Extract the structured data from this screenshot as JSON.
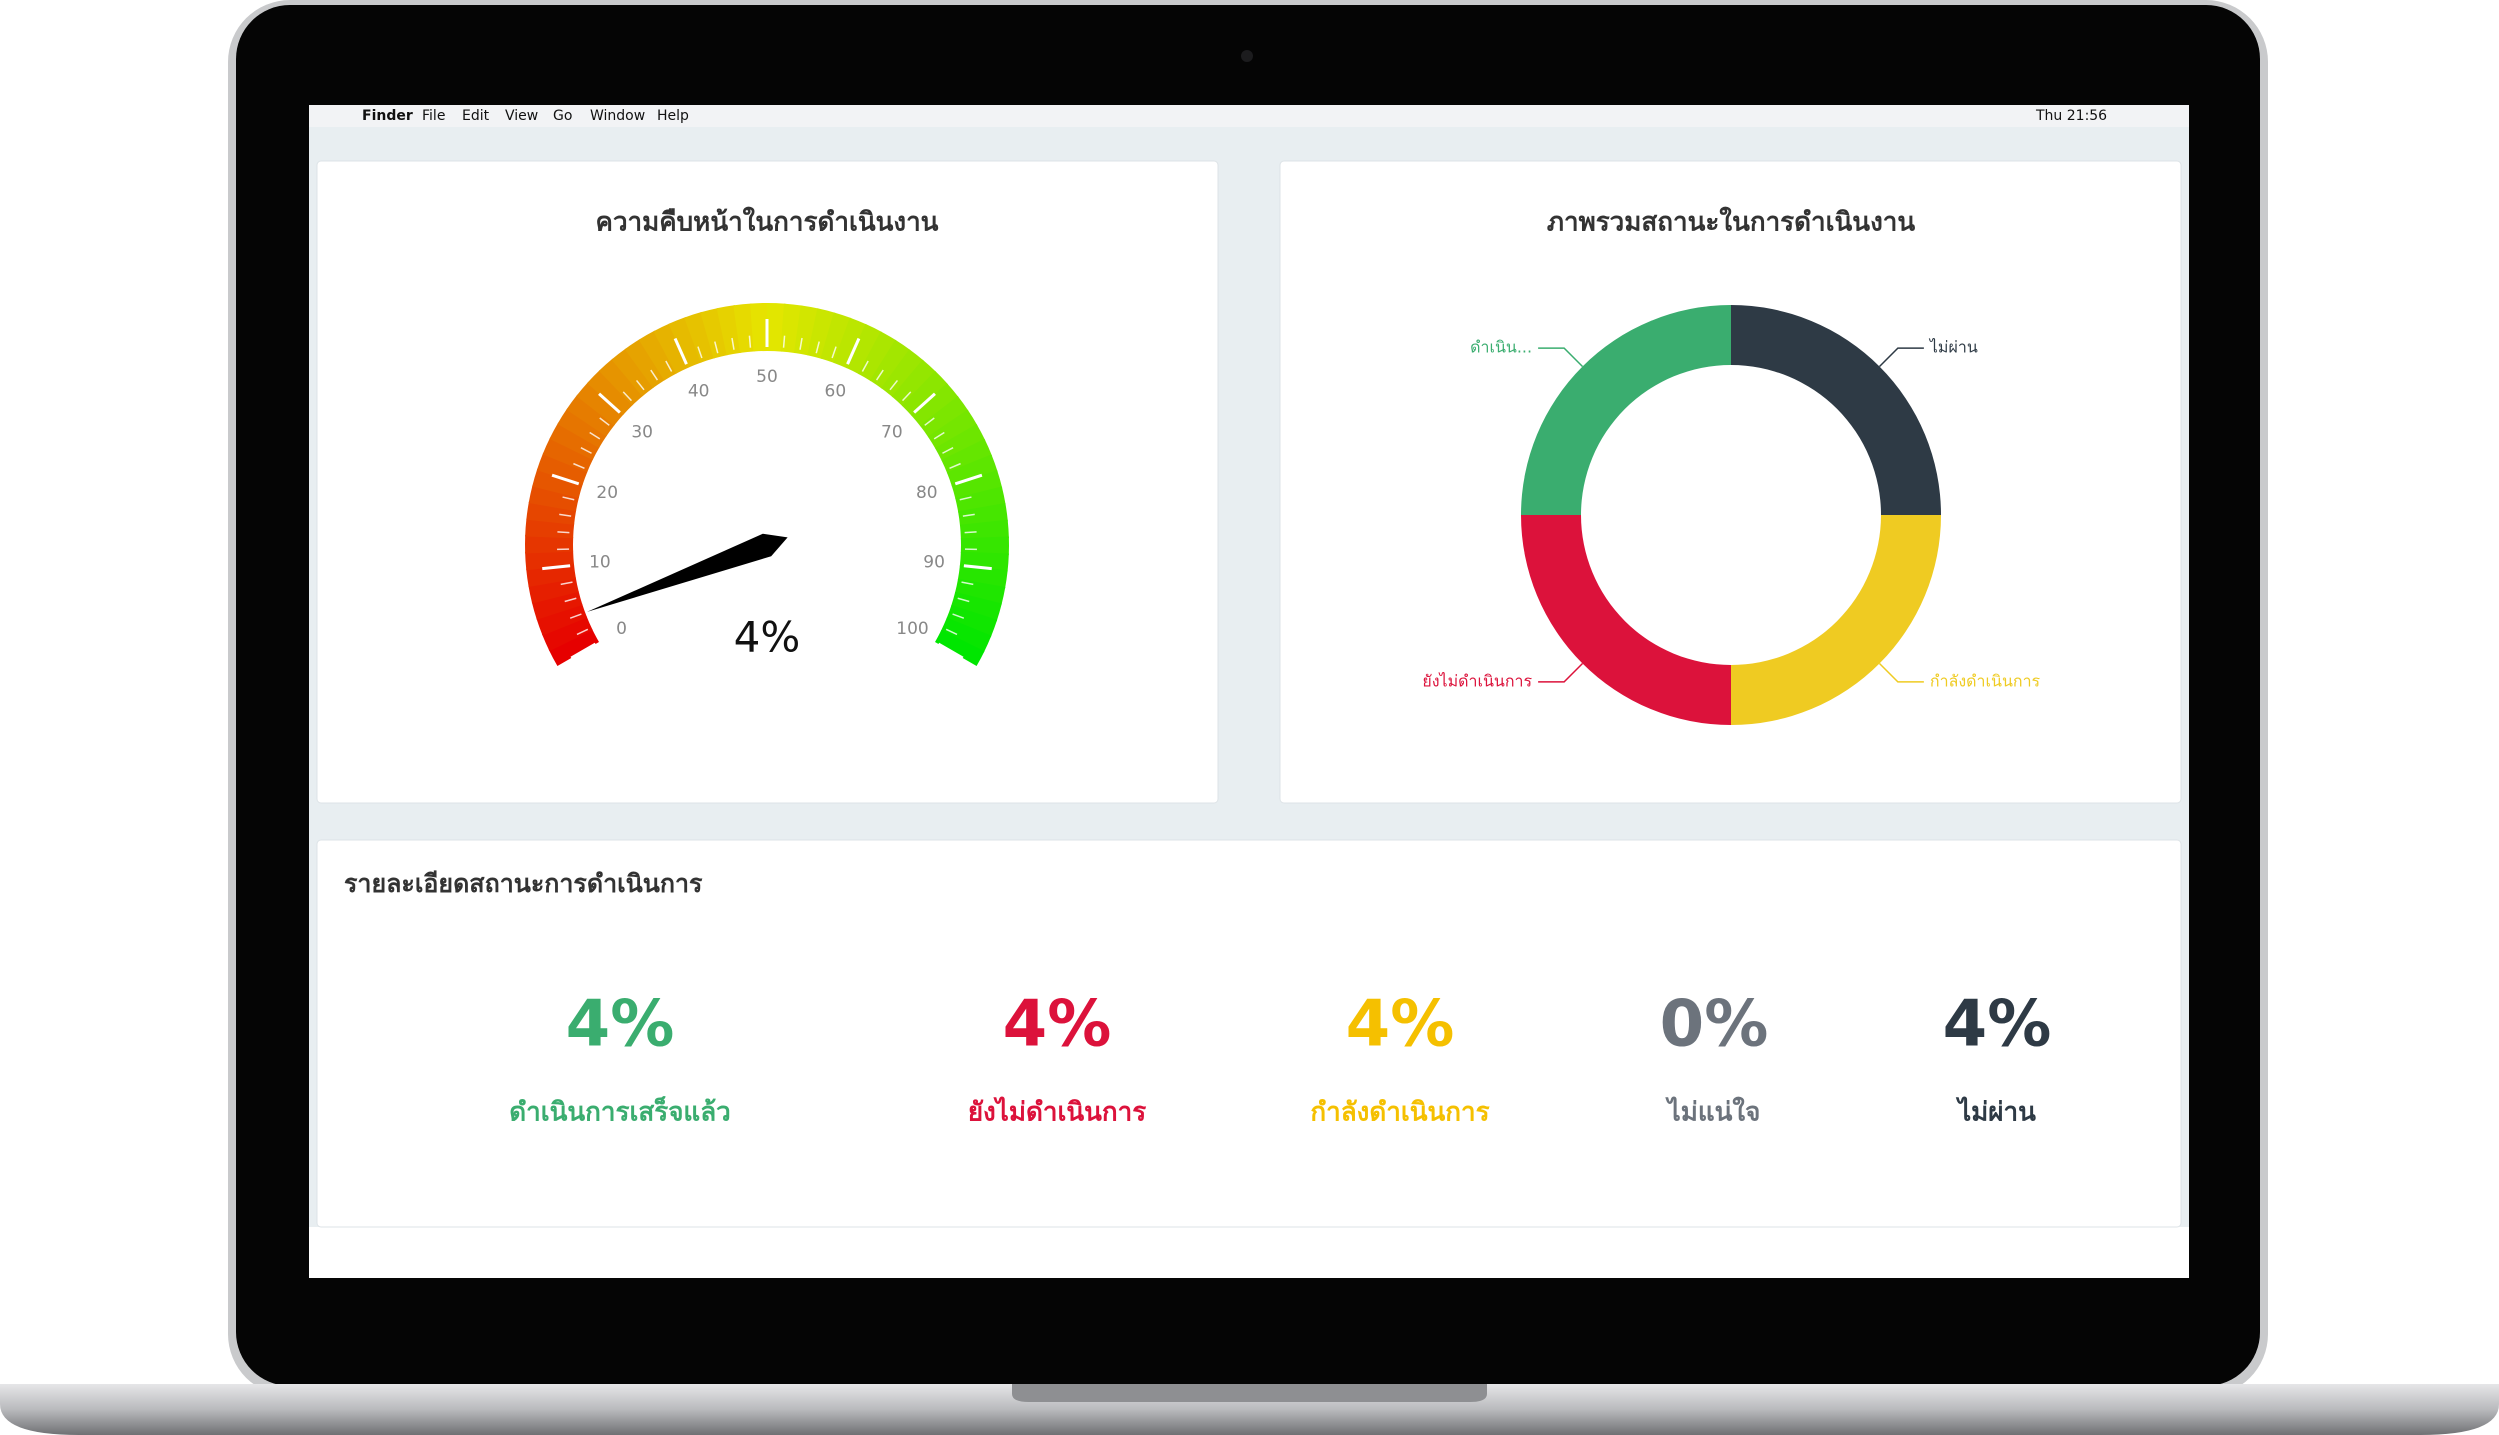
{
  "menu_bar": {
    "app": "Finder",
    "menus": [
      "File",
      "Edit",
      "View",
      "Go",
      "Window",
      "Help"
    ],
    "clock": "Thu 21:56"
  },
  "chart_data": [
    {
      "type": "gauge",
      "title": "ความคืบหน้าในการดำเนินงาน",
      "value": 4,
      "value_label": "4%",
      "xlim": [
        0,
        100
      ],
      "xticks": [
        0,
        10,
        20,
        30,
        40,
        50,
        60,
        70,
        80,
        90,
        100
      ]
    },
    {
      "type": "pie",
      "title": "ภาพรวมสถานะในการดำเนินงาน",
      "categories": [
        "ไม่ผ่าน",
        "กำลังดำเนินการ",
        "ยังไม่ดำเนินการ",
        "ดำเนิน..."
      ],
      "values": [
        25,
        25,
        25,
        25
      ],
      "colors": [
        "#2e3a45",
        "#efcb22",
        "#dc123b",
        "#3aad6f"
      ]
    }
  ],
  "details": {
    "title": "รายละเอียดสถานะการดำเนินการ",
    "items": [
      {
        "value": "4%",
        "label": "ดำเนินการเสร็จแล้ว",
        "color": "#3aad6f"
      },
      {
        "value": "4%",
        "label": "ยังไม่ดำเนินการ",
        "color": "#dc123b"
      },
      {
        "value": "4%",
        "label": "กำลังดำเนินการ",
        "color": "#f5c000"
      },
      {
        "value": "0%",
        "label": "ไม่แน่ใจ",
        "color": "#6c737c"
      },
      {
        "value": "4%",
        "label": "ไม่ผ่าน",
        "color": "#2e3a45"
      }
    ]
  }
}
